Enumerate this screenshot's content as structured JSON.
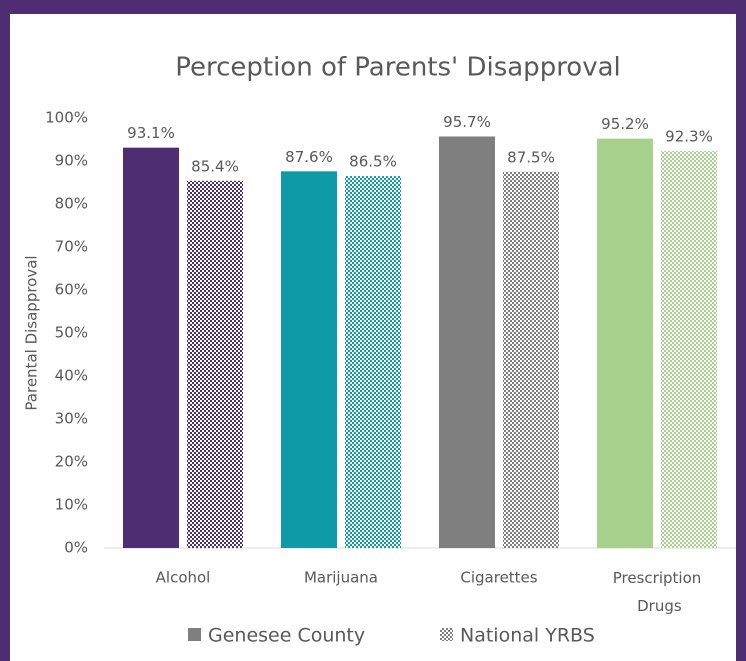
{
  "chart_data": {
    "type": "bar",
    "title": "Perception of Parents' Disapproval",
    "y_axis_label": "Parental Disapproval",
    "categories": [
      "Alcohol",
      "Marijuana",
      "Cigarettes",
      "Prescription Drugs"
    ],
    "category_colors": [
      "#4f2d73",
      "#0e9aa7",
      "#7f7f7f",
      "#a9d18e"
    ],
    "series": [
      {
        "name": "Genesee County",
        "color": "#7f7f7f",
        "pattern": "solid",
        "values": [
          93.1,
          87.6,
          95.7,
          95.2
        ],
        "value_labels": [
          "93.1%",
          "87.6%",
          "95.7%",
          "95.2%"
        ]
      },
      {
        "name": "National YRBS",
        "color": "#7f7f7f",
        "pattern": "checker",
        "values": [
          85.4,
          86.5,
          87.5,
          92.3
        ],
        "value_labels": [
          "85.4%",
          "86.5%",
          "87.5%",
          "92.3%"
        ]
      }
    ],
    "ylim": [
      0,
      100
    ],
    "yticks": [
      {
        "value": 0,
        "label": "0%"
      },
      {
        "value": 10,
        "label": "10%"
      },
      {
        "value": 20,
        "label": "20%"
      },
      {
        "value": 30,
        "label": "30%"
      },
      {
        "value": 40,
        "label": "40%"
      },
      {
        "value": 50,
        "label": "50%"
      },
      {
        "value": 60,
        "label": "60%"
      },
      {
        "value": 70,
        "label": "70%"
      },
      {
        "value": 80,
        "label": "80%"
      },
      {
        "value": 90,
        "label": "90%"
      },
      {
        "value": 100,
        "label": "100%"
      }
    ],
    "grid": false,
    "legend": "bottom"
  }
}
